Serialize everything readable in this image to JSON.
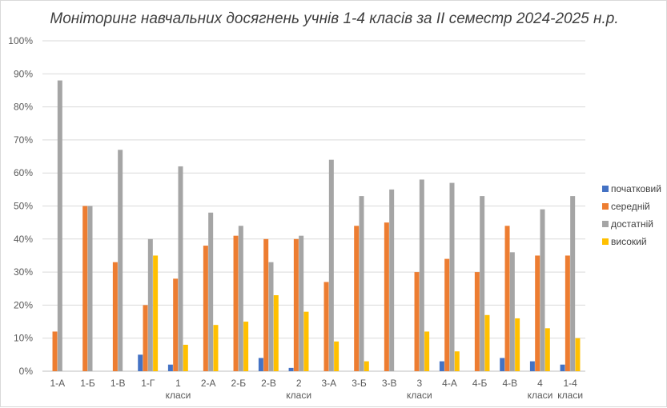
{
  "chart_data": {
    "type": "bar",
    "title": "Моніторинг навчальних досягнень учнів 1-4 класів за ІІ семестр 2024-2025 н.р.",
    "xlabel": "",
    "ylabel": "",
    "ylim": [
      0,
      100
    ],
    "y_ticks": [
      "0%",
      "10%",
      "20%",
      "30%",
      "40%",
      "50%",
      "60%",
      "70%",
      "80%",
      "90%",
      "100%"
    ],
    "grid": true,
    "legend_position": "right",
    "categories": [
      [
        "1-А"
      ],
      [
        "1-Б"
      ],
      [
        "1-В"
      ],
      [
        "1-Г"
      ],
      [
        "1",
        "класи"
      ],
      [
        "2-А"
      ],
      [
        "2-Б"
      ],
      [
        "2-В"
      ],
      [
        "2",
        "класи"
      ],
      [
        "3-А"
      ],
      [
        "3-Б"
      ],
      [
        "3-В"
      ],
      [
        "3",
        "класи"
      ],
      [
        "4-А"
      ],
      [
        "4-Б"
      ],
      [
        "4-В"
      ],
      [
        "4",
        "класи"
      ],
      [
        "1-4",
        "класи"
      ]
    ],
    "series": [
      {
        "name": "початковий",
        "color": "#4472c4",
        "values": [
          0,
          0,
          0,
          5,
          2,
          0,
          0,
          4,
          1,
          0,
          0,
          0,
          0,
          3,
          0,
          4,
          3,
          2
        ]
      },
      {
        "name": "середній",
        "color": "#ed7d31",
        "values": [
          12,
          50,
          33,
          20,
          28,
          38,
          41,
          40,
          40,
          27,
          44,
          45,
          30,
          34,
          30,
          44,
          35,
          35
        ]
      },
      {
        "name": "достатній",
        "color": "#a5a5a5",
        "values": [
          88,
          50,
          67,
          40,
          62,
          48,
          44,
          33,
          41,
          64,
          53,
          55,
          58,
          57,
          53,
          36,
          49,
          53
        ]
      },
      {
        "name": "високий",
        "color": "#ffc000",
        "values": [
          0,
          0,
          0,
          35,
          8,
          14,
          15,
          23,
          18,
          9,
          3,
          0,
          12,
          6,
          17,
          16,
          13,
          10
        ]
      }
    ]
  }
}
